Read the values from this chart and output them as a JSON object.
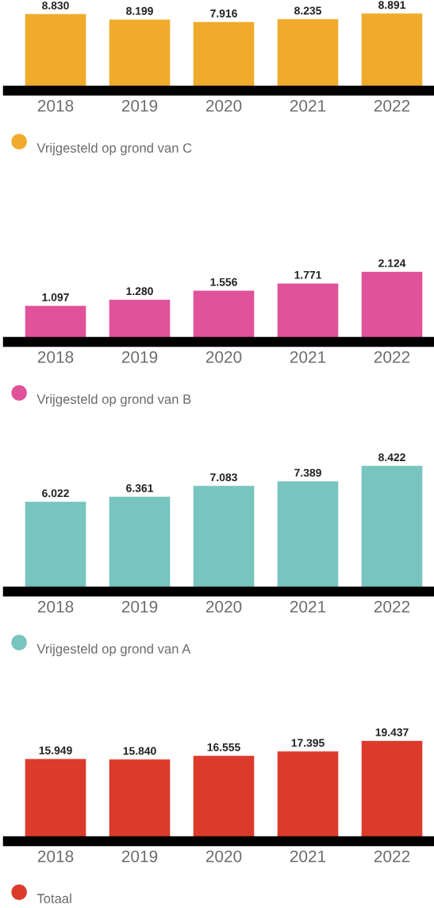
{
  "chart_data": [
    {
      "type": "bar",
      "categories": [
        "2018",
        "2019",
        "2020",
        "2021",
        "2022"
      ],
      "series": [
        {
          "name": "Vrijgesteld op grond van C",
          "color": "#f0ab2c",
          "values": [
            8830,
            8199,
            7916,
            8235,
            8891
          ],
          "value_labels": [
            "8.830",
            "8.199",
            "7.916",
            "8.235",
            "8.891"
          ]
        }
      ],
      "legend": "bottom left",
      "tick_labels": "x"
    },
    {
      "type": "bar",
      "categories": [
        "2018",
        "2019",
        "2020",
        "2021",
        "2022"
      ],
      "series": [
        {
          "name": "Vrijgesteld op grond van B",
          "color": "#e0529a",
          "values": [
            1097,
            1280,
            1556,
            1771,
            2124
          ],
          "value_labels": [
            "1.097",
            "1.280",
            "1.556",
            "1.771",
            "2.124"
          ]
        }
      ],
      "legend": "bottom left",
      "tick_labels": "x"
    },
    {
      "type": "bar",
      "categories": [
        "2018",
        "2019",
        "2020",
        "2021",
        "2022"
      ],
      "series": [
        {
          "name": "Vrijgesteld op grond van A",
          "color": "#78c4bf",
          "values": [
            6022,
            6361,
            7083,
            7389,
            8422
          ],
          "value_labels": [
            "6.022",
            "6.361",
            "7.083",
            "7.389",
            "8.422"
          ]
        }
      ],
      "legend": "bottom left",
      "tick_labels": "x"
    },
    {
      "type": "bar",
      "categories": [
        "2018",
        "2019",
        "2020",
        "2021",
        "2022"
      ],
      "series": [
        {
          "name": "Totaal",
          "color": "#dc3a2b",
          "values": [
            15949,
            15840,
            16555,
            17395,
            19437
          ],
          "value_labels": [
            "15.949",
            "15.840",
            "16.555",
            "17.395",
            "19.437"
          ]
        }
      ],
      "legend": "bottom left",
      "tick_labels": "x"
    }
  ]
}
